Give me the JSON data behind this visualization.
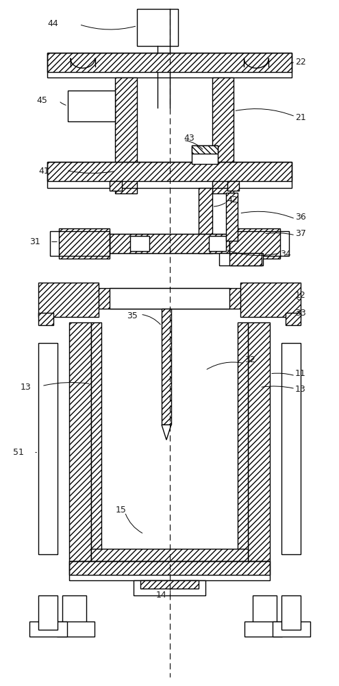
{
  "bg_color": "#ffffff",
  "line_color": "#000000",
  "label_color": "#1a1a1a",
  "figsize": [
    4.95,
    10.0
  ],
  "dpi": 100
}
